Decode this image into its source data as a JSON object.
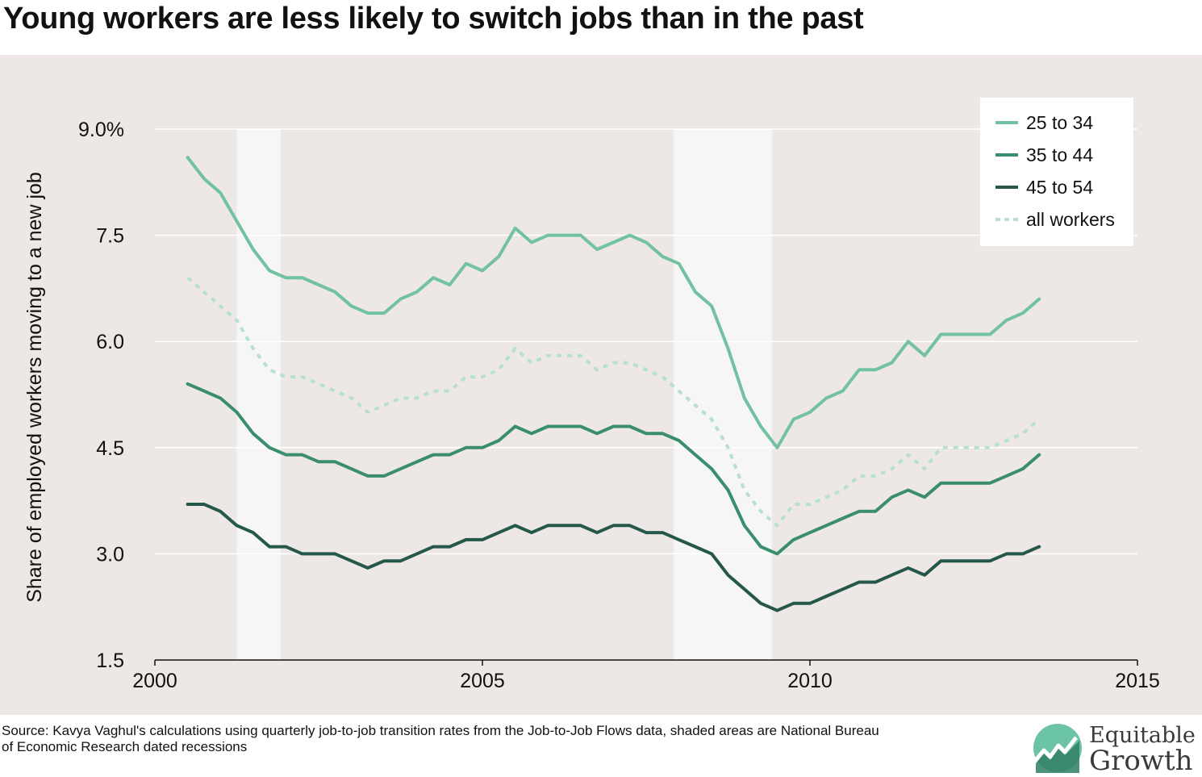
{
  "title": "Young workers are less likely to switch jobs than in the past",
  "source": "Source: Kavya Vaghul's calculations using quarterly job-to-job transition rates from the Job-to-Job Flows data, shaded areas are National Bureau of Economic Research dated recessions",
  "logo": {
    "line1": "Equitable",
    "line2": "Growth",
    "icon": "growth-chart-icon"
  },
  "chart_data": {
    "type": "line",
    "title": "Young workers are less likely to switch jobs than in the past",
    "xlabel": "",
    "ylabel": "Share of employed workers moving to a new job",
    "xlim": [
      2000,
      2015
    ],
    "ylim": [
      1.5,
      9.0
    ],
    "xticks": [
      2000,
      2005,
      2010,
      2015
    ],
    "xtick_labels": [
      "2000",
      "2005",
      "2010",
      "2015"
    ],
    "yticks": [
      1.5,
      3.0,
      4.5,
      6.0,
      7.5,
      9.0
    ],
    "ytick_labels": [
      "1.5",
      "3.0",
      "4.5",
      "6.0",
      "7.5",
      "9.0%"
    ],
    "grid": true,
    "legend_position": "top-right",
    "recessions": [
      [
        2001.25,
        2001.92
      ],
      [
        2007.92,
        2009.42
      ]
    ],
    "x": [
      2000.5,
      2000.75,
      2001.0,
      2001.25,
      2001.5,
      2001.75,
      2002.0,
      2002.25,
      2002.5,
      2002.75,
      2003.0,
      2003.25,
      2003.5,
      2003.75,
      2004.0,
      2004.25,
      2004.5,
      2004.75,
      2005.0,
      2005.25,
      2005.5,
      2005.75,
      2006.0,
      2006.25,
      2006.5,
      2006.75,
      2007.0,
      2007.25,
      2007.5,
      2007.75,
      2008.0,
      2008.25,
      2008.5,
      2008.75,
      2009.0,
      2009.25,
      2009.5,
      2009.75,
      2010.0,
      2010.25,
      2010.5,
      2010.75,
      2011.0,
      2011.25,
      2011.5,
      2011.75,
      2012.0,
      2012.25,
      2012.5,
      2012.75,
      2013.0,
      2013.25,
      2013.5
    ],
    "series": [
      {
        "name": "25 to 34",
        "color": "#72c2a2",
        "dash": false,
        "values": [
          8.6,
          8.3,
          8.1,
          7.7,
          7.3,
          7.0,
          6.9,
          6.9,
          6.8,
          6.7,
          6.5,
          6.4,
          6.4,
          6.6,
          6.7,
          6.9,
          6.8,
          7.1,
          7.0,
          7.2,
          7.6,
          7.4,
          7.5,
          7.5,
          7.5,
          7.3,
          7.4,
          7.5,
          7.4,
          7.2,
          7.1,
          6.7,
          6.5,
          5.9,
          5.2,
          4.8,
          4.5,
          4.9,
          5.0,
          5.2,
          5.3,
          5.6,
          5.6,
          5.7,
          6.0,
          5.8,
          6.1,
          6.1,
          6.1,
          6.1,
          6.3,
          6.4,
          6.6
        ]
      },
      {
        "name": "35 to 44",
        "color": "#3a8e6c",
        "dash": false,
        "values": [
          5.4,
          5.3,
          5.2,
          5.0,
          4.7,
          4.5,
          4.4,
          4.4,
          4.3,
          4.3,
          4.2,
          4.1,
          4.1,
          4.2,
          4.3,
          4.4,
          4.4,
          4.5,
          4.5,
          4.6,
          4.8,
          4.7,
          4.8,
          4.8,
          4.8,
          4.7,
          4.8,
          4.8,
          4.7,
          4.7,
          4.6,
          4.4,
          4.2,
          3.9,
          3.4,
          3.1,
          3.0,
          3.2,
          3.3,
          3.4,
          3.5,
          3.6,
          3.6,
          3.8,
          3.9,
          3.8,
          4.0,
          4.0,
          4.0,
          4.0,
          4.1,
          4.2,
          4.4
        ]
      },
      {
        "name": "45 to 54",
        "color": "#25574a",
        "dash": false,
        "values": [
          3.7,
          3.7,
          3.6,
          3.4,
          3.3,
          3.1,
          3.1,
          3.0,
          3.0,
          3.0,
          2.9,
          2.8,
          2.9,
          2.9,
          3.0,
          3.1,
          3.1,
          3.2,
          3.2,
          3.3,
          3.4,
          3.3,
          3.4,
          3.4,
          3.4,
          3.3,
          3.4,
          3.4,
          3.3,
          3.3,
          3.2,
          3.1,
          3.0,
          2.7,
          2.5,
          2.3,
          2.2,
          2.3,
          2.3,
          2.4,
          2.5,
          2.6,
          2.6,
          2.7,
          2.8,
          2.7,
          2.9,
          2.9,
          2.9,
          2.9,
          3.0,
          3.0,
          3.1
        ]
      },
      {
        "name": "all workers",
        "color": "#b7e0cd",
        "dash": true,
        "values": [
          6.9,
          6.7,
          6.5,
          6.3,
          5.9,
          5.6,
          5.5,
          5.5,
          5.4,
          5.3,
          5.2,
          5.0,
          5.1,
          5.2,
          5.2,
          5.3,
          5.3,
          5.5,
          5.5,
          5.6,
          5.9,
          5.7,
          5.8,
          5.8,
          5.8,
          5.6,
          5.7,
          5.7,
          5.6,
          5.5,
          5.3,
          5.1,
          4.9,
          4.5,
          3.9,
          3.6,
          3.4,
          3.7,
          3.7,
          3.8,
          3.9,
          4.1,
          4.1,
          4.2,
          4.4,
          4.2,
          4.5,
          4.5,
          4.5,
          4.5,
          4.6,
          4.7,
          4.9
        ]
      }
    ]
  }
}
